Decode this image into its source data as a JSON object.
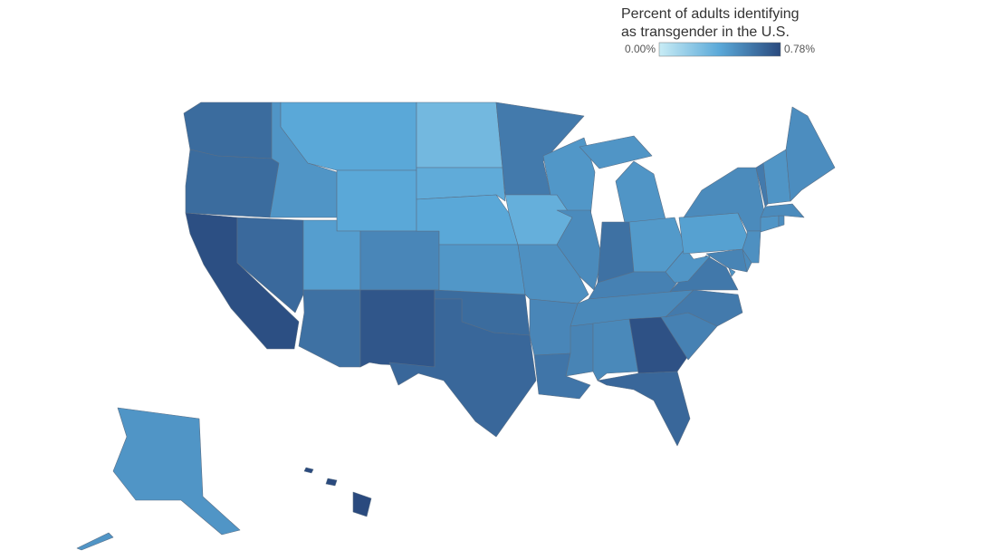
{
  "legend": {
    "title": [
      "Percent of adults identifying",
      "as transgender in the U.S."
    ],
    "ticks": [
      {
        "value": 0,
        "label": "0.00%"
      },
      {
        "value": 0.78,
        "label": "0.78%"
      }
    ],
    "colors": [
      "#c8ecf5",
      "#5aa8d8",
      "#2a4a7e"
    ]
  },
  "regions": {
    "values": [
      0.64,
      0.64,
      0.76,
      0.65,
      0.47,
      0.39,
      0.39,
      0.43,
      0.53,
      0.62,
      0.73,
      0.3,
      0.37,
      0.39,
      0.46,
      0.64,
      0.66,
      0.58,
      0.35,
      0.49,
      0.53,
      0.6,
      0.46,
      0.51,
      0.47,
      0.47,
      0.62,
      0.45,
      0.55,
      0.52,
      0.54,
      0.52,
      0.75,
      0.66,
      0.55,
      0.58,
      0.59,
      0.47,
      0.42,
      0.51,
      0.54,
      0.51,
      0.49,
      0.47,
      0.5,
      0.51,
      0.58,
      0.47,
      0.5,
      0.47,
      0.78
    ]
  }
}
